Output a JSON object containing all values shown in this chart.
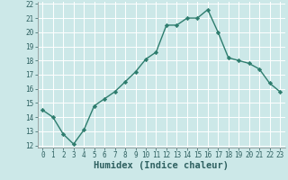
{
  "x": [
    0,
    1,
    2,
    3,
    4,
    5,
    6,
    7,
    8,
    9,
    10,
    11,
    12,
    13,
    14,
    15,
    16,
    17,
    18,
    19,
    20,
    21,
    22,
    23
  ],
  "y": [
    14.5,
    14.0,
    12.8,
    12.1,
    13.1,
    14.8,
    15.3,
    15.8,
    16.5,
    17.2,
    18.1,
    18.6,
    20.5,
    20.5,
    21.0,
    21.0,
    21.6,
    20.0,
    18.2,
    18.0,
    17.8,
    17.4,
    16.4,
    15.8
  ],
  "line_color": "#2e7d6e",
  "marker": "D",
  "marker_size": 2.2,
  "bg_color": "#cce8e8",
  "grid_color": "#ffffff",
  "xlabel": "Humidex (Indice chaleur)",
  "ylim": [
    12,
    22
  ],
  "xlim": [
    -0.5,
    23.5
  ],
  "yticks": [
    12,
    13,
    14,
    15,
    16,
    17,
    18,
    19,
    20,
    21,
    22
  ],
  "xticks": [
    0,
    1,
    2,
    3,
    4,
    5,
    6,
    7,
    8,
    9,
    10,
    11,
    12,
    13,
    14,
    15,
    16,
    17,
    18,
    19,
    20,
    21,
    22,
    23
  ],
  "tick_label_fontsize": 5.5,
  "xlabel_fontsize": 7.5,
  "xlabel_bold": true
}
